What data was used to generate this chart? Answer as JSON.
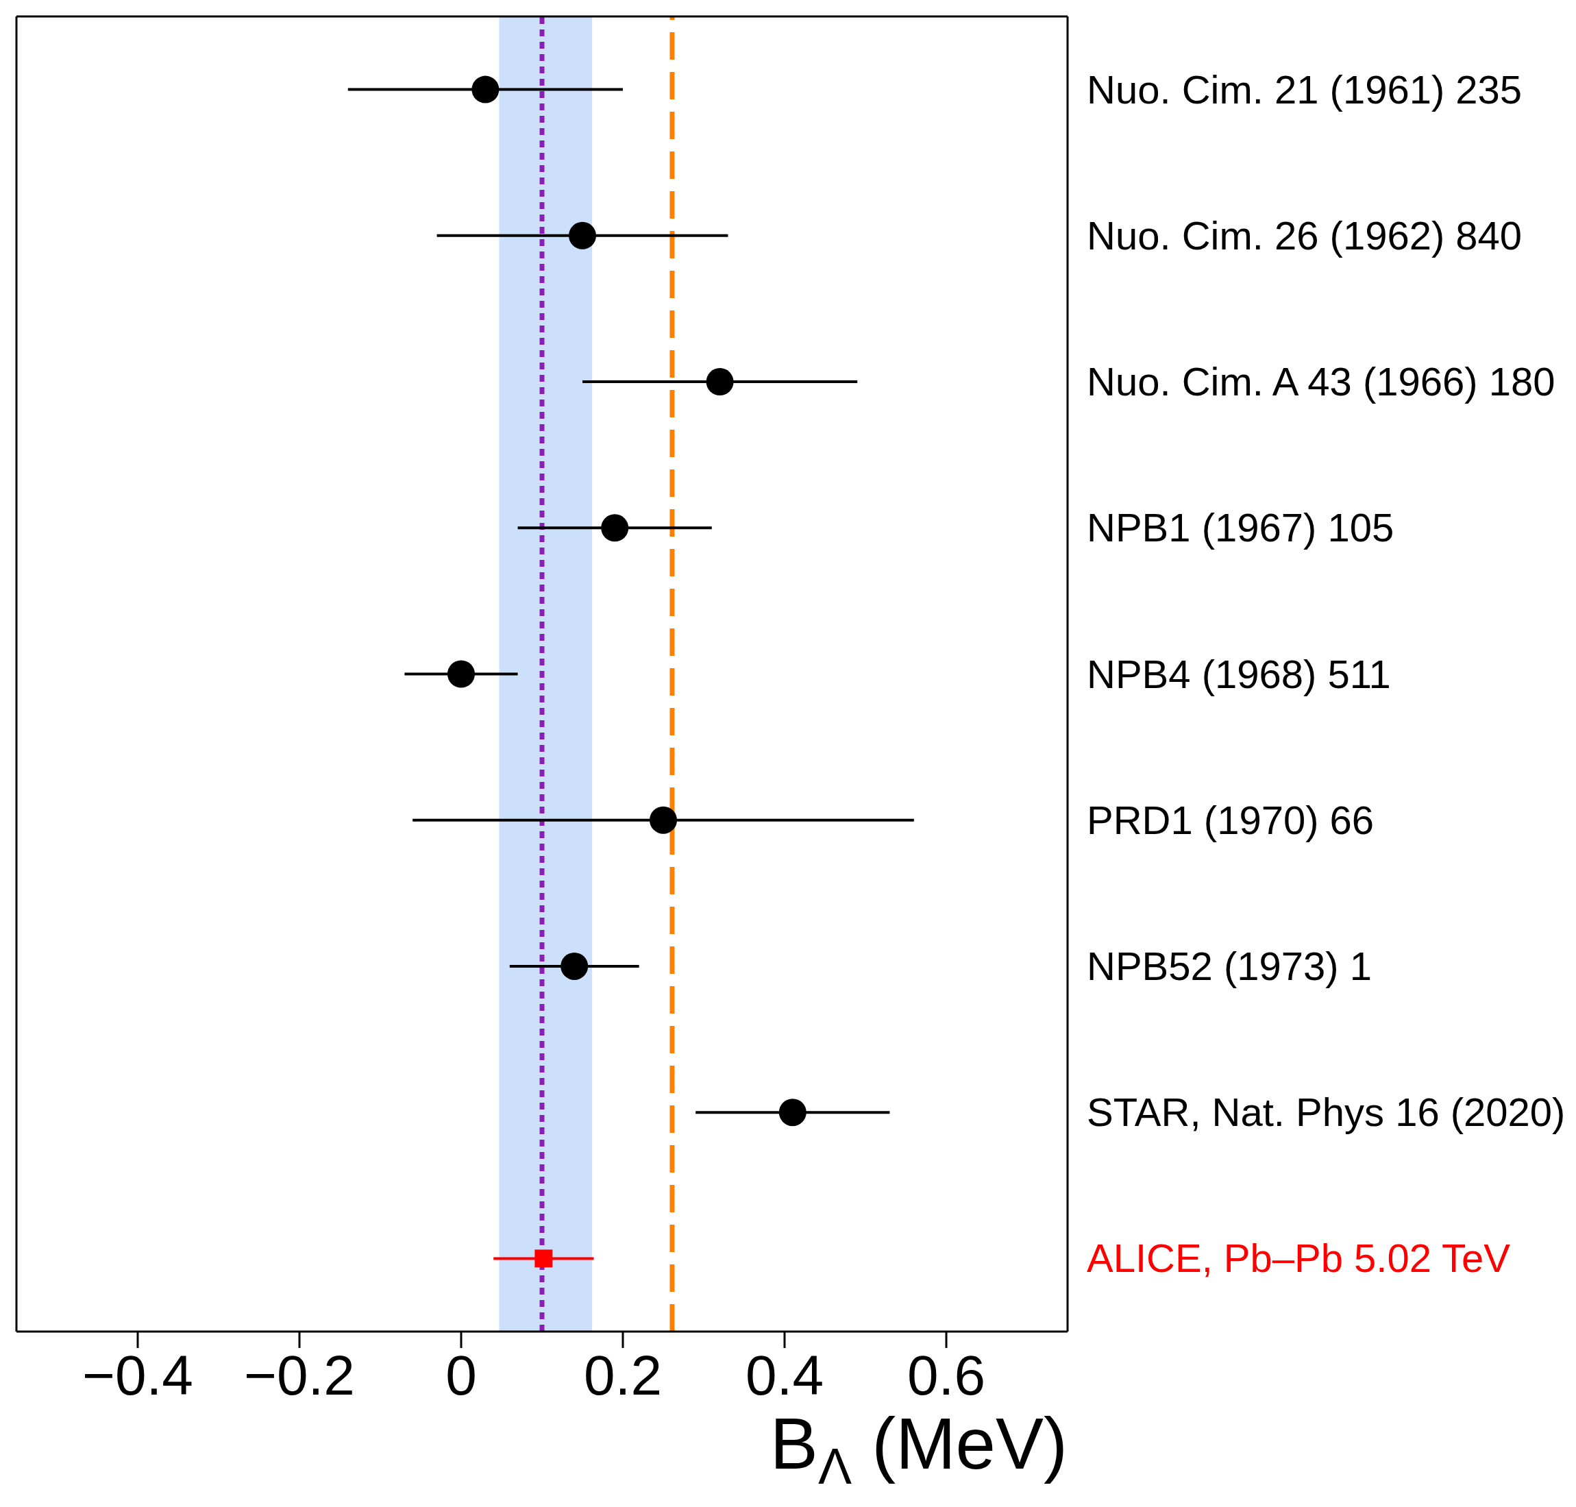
{
  "chart_data": {
    "type": "scatter",
    "orientation": "horizontal",
    "categories": [
      "Nuo. Cim. 21 (1961) 235",
      "Nuo. Cim. 26 (1962) 840",
      "Nuo. Cim. A 43 (1966) 180",
      "NPB1 (1967) 105",
      "NPB4 (1968) 511",
      "PRD1 (1970) 66",
      "NPB52 (1973) 1",
      "STAR, Nat. Phys 16 (2020)",
      "ALICE, Pb–Pb 5.02 TeV"
    ],
    "series": [
      {
        "color": "#000000",
        "marker": "circle",
        "values": [
          0.03,
          0.15,
          0.32,
          0.19,
          0.0,
          0.25,
          0.14,
          0.41,
          null
        ],
        "errors": [
          0.17,
          0.18,
          0.17,
          0.12,
          0.07,
          0.31,
          0.08,
          0.12,
          null
        ]
      },
      {
        "color": "#ff0000",
        "marker": "square",
        "values": [
          null,
          null,
          null,
          null,
          null,
          null,
          null,
          null,
          0.102
        ],
        "errors": [
          null,
          null,
          null,
          null,
          null,
          null,
          null,
          null,
          0.062
        ]
      }
    ],
    "xlabel": "B$_{Λ}$ (MeV)",
    "xlim": [
      -0.55,
      0.75
    ],
    "xticks": [
      {
        "value": -0.4,
        "label": "−0.4"
      },
      {
        "value": -0.2,
        "label": "−0.2"
      },
      0,
      {
        "value": 0.2,
        "label": "0.2"
      },
      {
        "value": 0.4,
        "label": "0.4"
      },
      {
        "value": 0.6,
        "label": "0.6"
      }
    ],
    "ref_lines": [
      {
        "axis": "x",
        "value": 0.1,
        "color": "#8b1fb5",
        "line_style": "dotted"
      },
      {
        "axis": "x",
        "value": 0.261,
        "color": "#ff7f00",
        "line_style": "dashed"
      }
    ],
    "bands": [
      {
        "axis": "x",
        "from": 0.047,
        "to": 0.162,
        "color": "#cce0fb"
      }
    ]
  }
}
